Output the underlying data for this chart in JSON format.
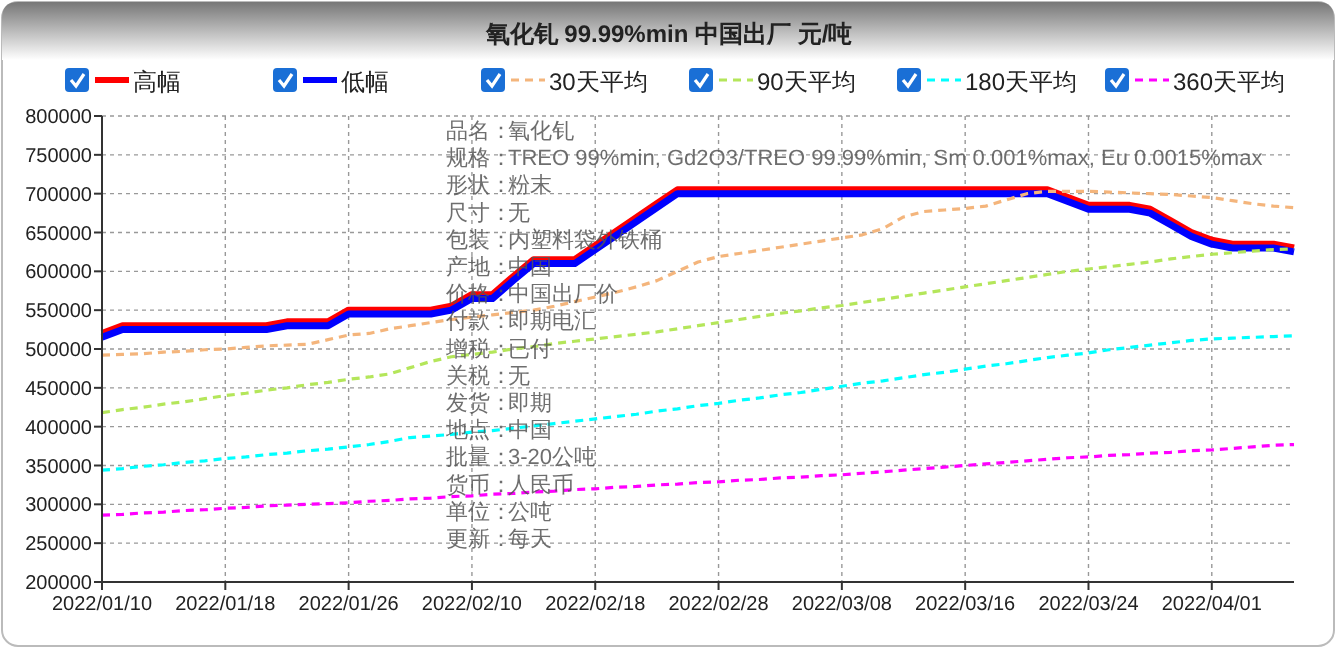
{
  "chart_data": {
    "type": "line",
    "title": "氧化钆 99.99%min 中国出厂 元/吨",
    "categories": [
      "2022/01/10",
      null,
      null,
      null,
      null,
      null,
      "2022/01/18",
      null,
      null,
      null,
      null,
      null,
      "2022/01/26",
      null,
      null,
      null,
      null,
      null,
      "2022/02/10",
      null,
      null,
      null,
      null,
      null,
      "2022/02/18",
      null,
      null,
      null,
      null,
      null,
      "2022/02/28",
      null,
      null,
      null,
      null,
      null,
      "2022/03/08",
      null,
      null,
      null,
      null,
      null,
      "2022/03/16",
      null,
      null,
      null,
      null,
      null,
      "2022/03/24",
      null,
      null,
      null,
      null,
      null,
      "2022/04/01",
      null,
      null,
      null,
      null
    ],
    "series": [
      {
        "name": "高幅",
        "color": "#ff0000",
        "line_style": "solid",
        "values": [
          520000,
          530000,
          530000,
          530000,
          530000,
          530000,
          530000,
          530000,
          530000,
          535000,
          535000,
          535000,
          550000,
          550000,
          550000,
          550000,
          550000,
          555000,
          570000,
          570000,
          593000,
          615000,
          615000,
          615000,
          633000,
          651000,
          669000,
          687000,
          705000,
          705000,
          705000,
          705000,
          705000,
          705000,
          705000,
          705000,
          705000,
          705000,
          705000,
          705000,
          705000,
          705000,
          705000,
          705000,
          705000,
          705000,
          705000,
          695000,
          685000,
          685000,
          685000,
          680000,
          665000,
          650000,
          640000,
          635000,
          635000,
          635000,
          630000
        ]
      },
      {
        "name": "低幅",
        "color": "#0000ff",
        "line_style": "solid",
        "values": [
          515000,
          525000,
          525000,
          525000,
          525000,
          525000,
          525000,
          525000,
          525000,
          530000,
          530000,
          530000,
          545000,
          545000,
          545000,
          545000,
          545000,
          550000,
          565000,
          565000,
          588000,
          610000,
          610000,
          610000,
          628000,
          646000,
          664000,
          682000,
          700000,
          700000,
          700000,
          700000,
          700000,
          700000,
          700000,
          700000,
          700000,
          700000,
          700000,
          700000,
          700000,
          700000,
          700000,
          700000,
          700000,
          700000,
          700000,
          690000,
          680000,
          680000,
          680000,
          675000,
          660000,
          645000,
          635000,
          630000,
          630000,
          630000,
          625000
        ]
      },
      {
        "name": "30天平均",
        "color": "#f4b57c",
        "line_style": "dashed",
        "values": [
          492000,
          493000,
          494000,
          496000,
          497000,
          499000,
          500000,
          502000,
          504000,
          505000,
          506000,
          512000,
          518000,
          520000,
          526000,
          530000,
          534000,
          538000,
          541000,
          544000,
          547000,
          550000,
          555000,
          561000,
          567000,
          573000,
          580000,
          588000,
          600000,
          612000,
          619000,
          623000,
          627000,
          631000,
          635000,
          639000,
          643000,
          647000,
          655000,
          670000,
          677000,
          679000,
          681000,
          684000,
          692000,
          700000,
          703000,
          703000,
          703000,
          702000,
          701000,
          700000,
          699000,
          697000,
          695000,
          691000,
          687000,
          684000,
          682000
        ]
      },
      {
        "name": "90天平均",
        "color": "#b4e65a",
        "line_style": "dashed",
        "values": [
          418000,
          422000,
          425000,
          429000,
          432000,
          436000,
          440000,
          443000,
          447000,
          450000,
          454000,
          457000,
          461000,
          464000,
          468000,
          476000,
          484000,
          490000,
          493000,
          496000,
          500000,
          503000,
          507000,
          510000,
          513000,
          516000,
          519000,
          522000,
          526000,
          530000,
          534000,
          538000,
          542000,
          546000,
          549000,
          553000,
          556000,
          560000,
          564000,
          568000,
          572000,
          576000,
          580000,
          584000,
          588000,
          592000,
          596000,
          600000,
          603000,
          606000,
          609000,
          612000,
          616000,
          619000,
          622000,
          624000,
          626000,
          628000,
          629000
        ]
      },
      {
        "name": "180天平均",
        "color": "#00ffff",
        "line_style": "dashed",
        "values": [
          344000,
          346000,
          349000,
          351000,
          354000,
          356000,
          359000,
          361000,
          364000,
          366000,
          369000,
          371000,
          374000,
          377000,
          381000,
          386000,
          388000,
          390000,
          393000,
          395000,
          398000,
          401000,
          404000,
          407000,
          410000,
          413000,
          416000,
          420000,
          423000,
          427000,
          430000,
          434000,
          437000,
          441000,
          444000,
          448000,
          452000,
          456000,
          459000,
          463000,
          467000,
          470000,
          474000,
          478000,
          481000,
          485000,
          489000,
          492000,
          495000,
          499000,
          502000,
          505000,
          508000,
          511000,
          513000,
          514000,
          515000,
          516000,
          517000
        ]
      },
      {
        "name": "360天平均",
        "color": "#ff00ff",
        "line_style": "dashed",
        "values": [
          286000,
          287000,
          289000,
          290000,
          292000,
          293000,
          295000,
          296000,
          298000,
          299000,
          300000,
          301000,
          302000,
          304000,
          305000,
          307000,
          308000,
          310000,
          311000,
          313000,
          314000,
          316000,
          317000,
          319000,
          320000,
          322000,
          323000,
          325000,
          326000,
          328000,
          329000,
          331000,
          332000,
          334000,
          335000,
          337000,
          338000,
          340000,
          342000,
          344000,
          346000,
          348000,
          350000,
          352000,
          354000,
          356000,
          358000,
          360000,
          361000,
          363000,
          364000,
          366000,
          367000,
          369000,
          370000,
          372000,
          374000,
          376000,
          377000
        ]
      }
    ],
    "ylim": [
      200000,
      800000
    ],
    "yticks": [
      200000,
      250000,
      300000,
      350000,
      400000,
      450000,
      500000,
      550000,
      600000,
      650000,
      700000,
      750000,
      800000
    ],
    "grid": true,
    "legend": "top",
    "annotations": [
      "品名：氧化钆",
      "规格：TREO 99%min, Gd2O3/TREO 99.99%min, Sm 0.001%max, Eu 0.0015%max",
      "形状：粉末",
      "尺寸：无",
      "包装：内塑料袋外铁桶",
      "产地：中国",
      "价格：中国出厂价",
      "付款：即期电汇",
      "增税：已付",
      "关税：无",
      "发货：即期",
      "地点：中国",
      "批量：3-20公吨",
      "货币：人民币",
      "单位：公吨",
      "更新：每天"
    ]
  }
}
